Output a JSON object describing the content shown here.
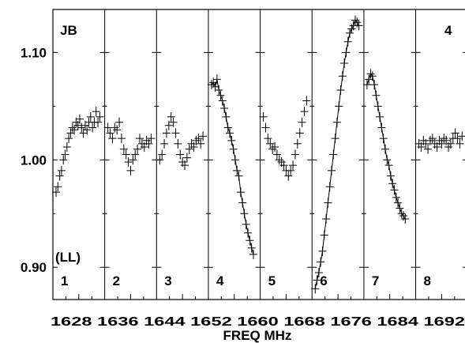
{
  "chart_data": {
    "type": "scatter",
    "title": "",
    "source_label": "JB",
    "corner_label": "4",
    "polarization_label": "(LL)",
    "xlabel": "FREQ MHz",
    "ylabel": "",
    "ylim": [
      0.87,
      1.14
    ],
    "yticks": [
      "1.10",
      "1.00",
      "0.90"
    ],
    "ytick_values": [
      1.1,
      1.0,
      0.9
    ],
    "x_tick_labels": "1628 1636 1644 1652 1660 1668 1676 1684 1692",
    "panels": [
      {
        "label": "1",
        "points": [
          [
            0,
            0.97
          ],
          [
            0.04,
            0.975
          ],
          [
            0.08,
            0.985
          ],
          [
            0.12,
            0.99
          ],
          [
            0.16,
            1.0
          ],
          [
            0.2,
            1.005
          ],
          [
            0.24,
            1.012
          ],
          [
            0.28,
            1.02
          ],
          [
            0.32,
            1.025
          ],
          [
            0.36,
            1.03
          ],
          [
            0.4,
            1.028
          ],
          [
            0.44,
            1.035
          ],
          [
            0.48,
            1.032
          ],
          [
            0.52,
            1.038
          ],
          [
            0.56,
            1.03
          ],
          [
            0.6,
            1.025
          ],
          [
            0.64,
            1.032
          ],
          [
            0.68,
            1.028
          ],
          [
            0.72,
            1.035
          ],
          [
            0.76,
            1.04
          ],
          [
            0.8,
            1.03
          ],
          [
            0.84,
            1.035
          ],
          [
            0.88,
            1.045
          ],
          [
            0.92,
            1.035
          ],
          [
            0.96,
            1.04
          ]
        ]
      },
      {
        "label": "2",
        "points": [
          [
            0,
            1.03
          ],
          [
            0.05,
            1.025
          ],
          [
            0.1,
            1.02
          ],
          [
            0.15,
            1.03
          ],
          [
            0.2,
            1.028
          ],
          [
            0.25,
            1.035
          ],
          [
            0.3,
            1.02
          ],
          [
            0.35,
            1.01
          ],
          [
            0.4,
            1.005
          ],
          [
            0.45,
            0.998
          ],
          [
            0.5,
            0.99
          ],
          [
            0.55,
            1.0
          ],
          [
            0.6,
            1.005
          ],
          [
            0.65,
            1.01
          ],
          [
            0.7,
            1.02
          ],
          [
            0.75,
            1.015
          ],
          [
            0.8,
            1.012
          ],
          [
            0.85,
            1.018
          ],
          [
            0.9,
            1.015
          ],
          [
            0.95,
            1.02
          ]
        ]
      },
      {
        "label": "3",
        "points": [
          [
            0,
            1.0
          ],
          [
            0.05,
            1.005
          ],
          [
            0.1,
            1.015
          ],
          [
            0.15,
            1.025
          ],
          [
            0.2,
            1.032
          ],
          [
            0.25,
            1.04
          ],
          [
            0.3,
            1.035
          ],
          [
            0.35,
            1.025
          ],
          [
            0.4,
            1.015
          ],
          [
            0.45,
            1.005
          ],
          [
            0.5,
            0.998
          ],
          [
            0.55,
            0.995
          ],
          [
            0.6,
            1.002
          ],
          [
            0.65,
            1.01
          ],
          [
            0.7,
            1.015
          ],
          [
            0.75,
            1.012
          ],
          [
            0.8,
            1.018
          ],
          [
            0.85,
            1.02
          ],
          [
            0.9,
            1.015
          ],
          [
            0.95,
            1.022
          ]
        ]
      },
      {
        "label": "4",
        "points": [
          [
            0,
            1.07
          ],
          [
            0.04,
            1.072
          ],
          [
            0.08,
            1.068
          ],
          [
            0.12,
            1.075
          ],
          [
            0.16,
            1.065
          ],
          [
            0.2,
            1.06
          ],
          [
            0.24,
            1.055
          ],
          [
            0.28,
            1.048
          ],
          [
            0.32,
            1.04
          ],
          [
            0.36,
            1.03
          ],
          [
            0.4,
            1.025
          ],
          [
            0.44,
            1.018
          ],
          [
            0.48,
            1.01
          ],
          [
            0.52,
            1.0
          ],
          [
            0.56,
            0.99
          ],
          [
            0.6,
            0.985
          ],
          [
            0.64,
            0.97
          ],
          [
            0.68,
            0.96
          ],
          [
            0.72,
            0.95
          ],
          [
            0.76,
            0.94
          ],
          [
            0.8,
            0.932
          ],
          [
            0.84,
            0.925
          ],
          [
            0.88,
            0.918
          ],
          [
            0.92,
            0.912
          ]
        ]
      },
      {
        "label": "5",
        "points": [
          [
            0,
            1.04
          ],
          [
            0.05,
            1.03
          ],
          [
            0.1,
            1.02
          ],
          [
            0.15,
            1.015
          ],
          [
            0.2,
            1.01
          ],
          [
            0.25,
            1.012
          ],
          [
            0.3,
            1.005
          ],
          [
            0.35,
            1.0
          ],
          [
            0.4,
            0.998
          ],
          [
            0.45,
            0.995
          ],
          [
            0.5,
            0.99
          ],
          [
            0.55,
            0.985
          ],
          [
            0.6,
            0.99
          ],
          [
            0.65,
            0.995
          ],
          [
            0.7,
            1.005
          ],
          [
            0.75,
            1.015
          ],
          [
            0.8,
            1.025
          ],
          [
            0.85,
            1.035
          ],
          [
            0.9,
            1.045
          ],
          [
            0.95,
            1.055
          ]
        ]
      },
      {
        "label": "6",
        "points": [
          [
            0,
            0.88
          ],
          [
            0.04,
            0.888
          ],
          [
            0.08,
            0.895
          ],
          [
            0.12,
            0.905
          ],
          [
            0.16,
            0.915
          ],
          [
            0.2,
            0.93
          ],
          [
            0.24,
            0.945
          ],
          [
            0.28,
            0.96
          ],
          [
            0.32,
            0.975
          ],
          [
            0.36,
            0.99
          ],
          [
            0.4,
            1.005
          ],
          [
            0.44,
            1.02
          ],
          [
            0.48,
            1.035
          ],
          [
            0.52,
            1.05
          ],
          [
            0.56,
            1.065
          ],
          [
            0.6,
            1.078
          ],
          [
            0.64,
            1.09
          ],
          [
            0.68,
            1.1
          ],
          [
            0.72,
            1.11
          ],
          [
            0.76,
            1.118
          ],
          [
            0.8,
            1.122
          ],
          [
            0.84,
            1.125
          ],
          [
            0.88,
            1.13
          ],
          [
            0.92,
            1.128
          ],
          [
            0.96,
            1.125
          ]
        ]
      },
      {
        "label": "7",
        "points": [
          [
            0,
            1.07
          ],
          [
            0.04,
            1.075
          ],
          [
            0.08,
            1.08
          ],
          [
            0.12,
            1.078
          ],
          [
            0.16,
            1.07
          ],
          [
            0.2,
            1.06
          ],
          [
            0.24,
            1.05
          ],
          [
            0.28,
            1.04
          ],
          [
            0.32,
            1.03
          ],
          [
            0.36,
            1.02
          ],
          [
            0.4,
            1.01
          ],
          [
            0.44,
            1.0
          ],
          [
            0.48,
            0.995
          ],
          [
            0.52,
            0.985
          ],
          [
            0.56,
            0.978
          ],
          [
            0.6,
            0.972
          ],
          [
            0.64,
            0.965
          ],
          [
            0.68,
            0.96
          ],
          [
            0.72,
            0.955
          ],
          [
            0.76,
            0.95
          ],
          [
            0.8,
            0.948
          ],
          [
            0.84,
            0.945
          ]
        ]
      },
      {
        "label": "8",
        "points": [
          [
            0,
            1.015
          ],
          [
            0.05,
            1.012
          ],
          [
            0.1,
            1.018
          ],
          [
            0.15,
            1.015
          ],
          [
            0.2,
            1.01
          ],
          [
            0.25,
            1.018
          ],
          [
            0.3,
            1.02
          ],
          [
            0.35,
            1.015
          ],
          [
            0.4,
            1.012
          ],
          [
            0.45,
            1.018
          ],
          [
            0.5,
            1.015
          ],
          [
            0.55,
            1.02
          ],
          [
            0.6,
            1.018
          ],
          [
            0.65,
            1.012
          ],
          [
            0.7,
            1.015
          ],
          [
            0.75,
            1.02
          ],
          [
            0.8,
            1.025
          ],
          [
            0.85,
            1.02
          ],
          [
            0.9,
            1.015
          ],
          [
            0.95,
            1.022
          ]
        ]
      }
    ]
  }
}
